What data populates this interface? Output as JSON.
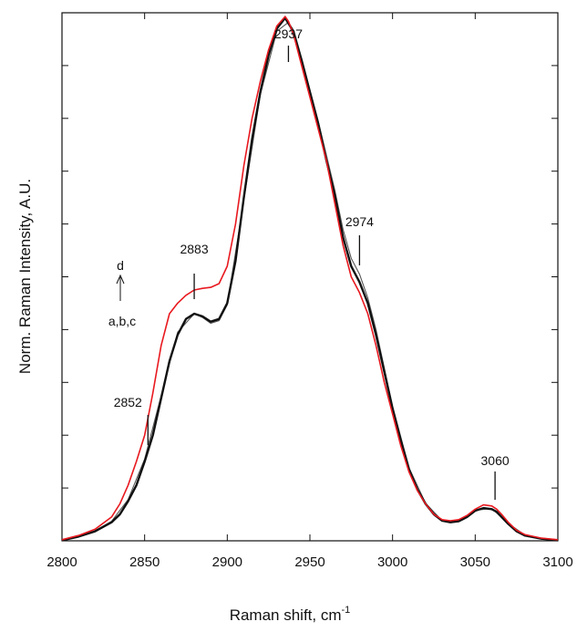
{
  "chart_data": {
    "type": "line",
    "xlabel": "Raman shift, cm",
    "xlabel_superscript": "-1",
    "ylabel": "Norm. Raman Intensity, A.U.",
    "xlim": [
      2800,
      3100
    ],
    "ylim": [
      0,
      1.0
    ],
    "x_ticks": [
      2800,
      2850,
      2900,
      2950,
      3000,
      3050,
      3100
    ],
    "y_tick_count": 11,
    "grid": false,
    "annotations": [
      {
        "text": "2937",
        "x": 2937
      },
      {
        "text": "2974",
        "x": 2980
      },
      {
        "text": "2883",
        "x": 2880
      },
      {
        "text": "2852",
        "x": 2852
      },
      {
        "text": "3060",
        "x": 3062
      }
    ],
    "legend_note": {
      "top": "d",
      "bottom": "a,b,c"
    },
    "colors": {
      "red": "#e8191f",
      "black": "#111111",
      "gray": "#555555"
    },
    "series": [
      {
        "label_key": "d",
        "color": "red",
        "x": [
          2800,
          2810,
          2820,
          2830,
          2835,
          2840,
          2845,
          2850,
          2855,
          2860,
          2865,
          2870,
          2875,
          2880,
          2885,
          2890,
          2895,
          2900,
          2905,
          2910,
          2915,
          2920,
          2925,
          2930,
          2935,
          2937,
          2940,
          2945,
          2950,
          2955,
          2960,
          2965,
          2970,
          2975,
          2980,
          2985,
          2990,
          2995,
          3000,
          3005,
          3010,
          3015,
          3020,
          3025,
          3030,
          3035,
          3040,
          3045,
          3050,
          3055,
          3060,
          3063,
          3066,
          3070,
          3075,
          3080,
          3090,
          3100
        ],
        "y": [
          0.002,
          0.01,
          0.022,
          0.045,
          0.07,
          0.105,
          0.15,
          0.2,
          0.28,
          0.37,
          0.43,
          0.45,
          0.465,
          0.475,
          0.478,
          0.48,
          0.487,
          0.52,
          0.6,
          0.71,
          0.8,
          0.87,
          0.93,
          0.975,
          0.993,
          0.984,
          0.96,
          0.9,
          0.84,
          0.78,
          0.72,
          0.64,
          0.56,
          0.5,
          0.47,
          0.43,
          0.37,
          0.3,
          0.24,
          0.18,
          0.13,
          0.095,
          0.07,
          0.05,
          0.04,
          0.038,
          0.04,
          0.048,
          0.06,
          0.068,
          0.066,
          0.06,
          0.05,
          0.035,
          0.02,
          0.012,
          0.005,
          0.002
        ]
      },
      {
        "label_key": "a,b,c",
        "color": "black",
        "x": [
          2800,
          2810,
          2820,
          2830,
          2835,
          2840,
          2845,
          2850,
          2855,
          2860,
          2865,
          2870,
          2875,
          2880,
          2885,
          2890,
          2895,
          2900,
          2905,
          2910,
          2915,
          2920,
          2925,
          2930,
          2935,
          2937,
          2940,
          2945,
          2950,
          2955,
          2960,
          2965,
          2970,
          2975,
          2980,
          2985,
          2990,
          2995,
          3000,
          3005,
          3010,
          3015,
          3020,
          3025,
          3030,
          3035,
          3040,
          3045,
          3050,
          3055,
          3060,
          3063,
          3066,
          3070,
          3075,
          3080,
          3090,
          3100
        ],
        "y": [
          0.001,
          0.008,
          0.018,
          0.035,
          0.05,
          0.075,
          0.105,
          0.15,
          0.2,
          0.27,
          0.34,
          0.39,
          0.42,
          0.43,
          0.425,
          0.415,
          0.42,
          0.45,
          0.53,
          0.65,
          0.76,
          0.85,
          0.92,
          0.97,
          0.99,
          0.98,
          0.965,
          0.91,
          0.85,
          0.79,
          0.72,
          0.655,
          0.575,
          0.52,
          0.49,
          0.45,
          0.39,
          0.32,
          0.25,
          0.19,
          0.135,
          0.097,
          0.07,
          0.05,
          0.038,
          0.035,
          0.037,
          0.045,
          0.057,
          0.062,
          0.06,
          0.055,
          0.045,
          0.032,
          0.018,
          0.01,
          0.004,
          0.001
        ]
      },
      {
        "label_key": "a,b,c",
        "color": "gray",
        "x": [
          2800,
          2810,
          2820,
          2830,
          2840,
          2850,
          2860,
          2870,
          2880,
          2885,
          2890,
          2895,
          2900,
          2910,
          2920,
          2930,
          2937,
          2945,
          2955,
          2965,
          2970,
          2975,
          2980,
          2985,
          2990,
          3000,
          3010,
          3020,
          3030,
          3040,
          3050,
          3060,
          3070,
          3080,
          3090,
          3100
        ],
        "y": [
          0.001,
          0.008,
          0.019,
          0.037,
          0.078,
          0.155,
          0.275,
          0.395,
          0.43,
          0.423,
          0.412,
          0.417,
          0.447,
          0.645,
          0.845,
          0.965,
          0.982,
          0.913,
          0.795,
          0.665,
          0.59,
          0.535,
          0.505,
          0.46,
          0.4,
          0.255,
          0.138,
          0.071,
          0.038,
          0.038,
          0.058,
          0.061,
          0.033,
          0.011,
          0.004,
          0.001
        ]
      }
    ]
  }
}
